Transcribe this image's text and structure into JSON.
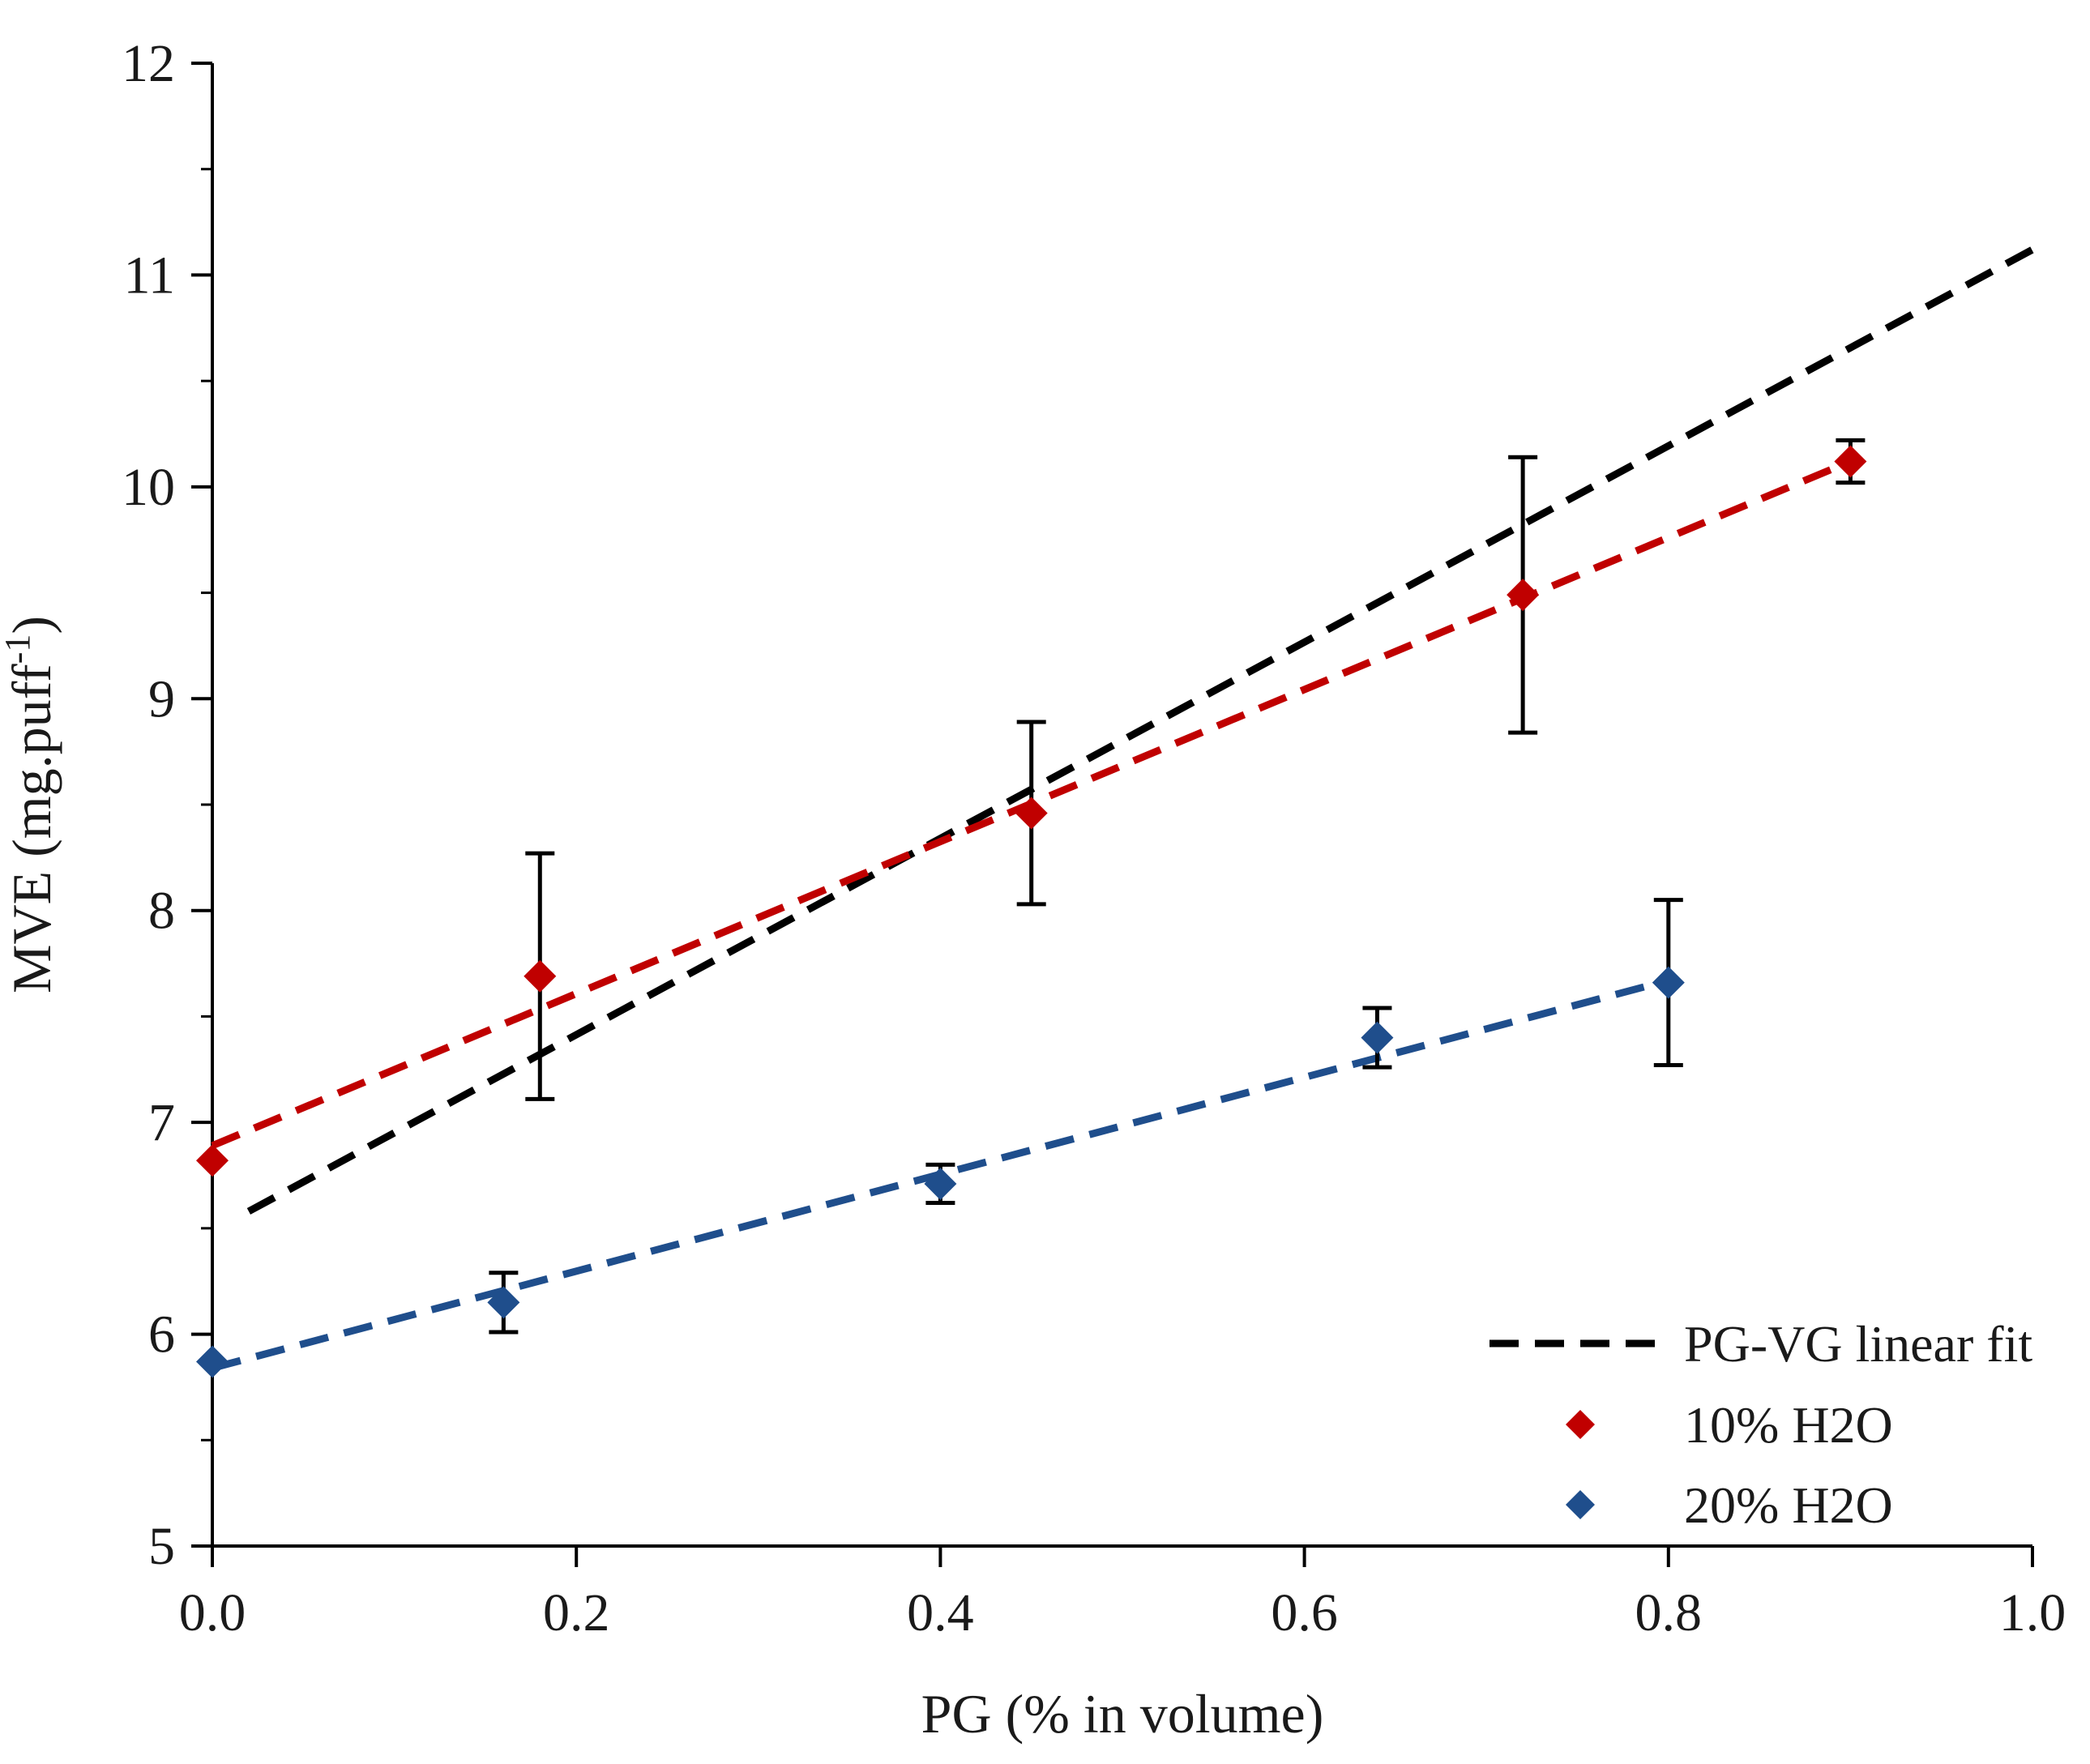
{
  "chart_data": {
    "type": "scatter",
    "title": "",
    "xlabel": "PG (% in volume)",
    "ylabel_main": "MVE (mg.puff",
    "ylabel_sup": "-1",
    "ylabel_close": ")",
    "xlim": [
      0,
      1
    ],
    "ylim": [
      5,
      12
    ],
    "grid": false,
    "legend_position": "bottom-right",
    "x_ticks": [
      0,
      0.2,
      0.4,
      0.6,
      0.8,
      1.0
    ],
    "x_tick_labels": [
      "0.0",
      "0.2",
      "0.4",
      "0.6",
      "0.8",
      "1.0"
    ],
    "y_ticks": [
      5,
      6,
      7,
      8,
      9,
      10,
      11,
      12
    ],
    "y_tick_labels": [
      "5",
      "6",
      "7",
      "8",
      "9",
      "10",
      "11",
      "12"
    ],
    "y_minor_step": 0.5,
    "series": [
      {
        "name": "10% H2O",
        "color": "#c00000",
        "marker": "diamond",
        "points": [
          {
            "x": 0.0,
            "y": 6.82,
            "err": 0.0
          },
          {
            "x": 0.18,
            "y": 7.69,
            "err": 0.58
          },
          {
            "x": 0.45,
            "y": 8.46,
            "err": 0.43
          },
          {
            "x": 0.72,
            "y": 9.49,
            "err": 0.65
          },
          {
            "x": 0.9,
            "y": 10.12,
            "err": 0.1
          }
        ],
        "fit": {
          "x": [
            0.0,
            0.9
          ],
          "y": [
            6.89,
            10.12
          ]
        }
      },
      {
        "name": "20% H2O",
        "color": "#1f4e8c",
        "marker": "diamond",
        "points": [
          {
            "x": 0.0,
            "y": 5.87,
            "err": 0.0
          },
          {
            "x": 0.16,
            "y": 6.15,
            "err": 0.14
          },
          {
            "x": 0.4,
            "y": 6.71,
            "err": 0.09
          },
          {
            "x": 0.64,
            "y": 7.4,
            "err": 0.14
          },
          {
            "x": 0.8,
            "y": 7.66,
            "err": 0.39
          }
        ],
        "fit": {
          "x": [
            0.0,
            0.8
          ],
          "y": [
            5.84,
            7.67
          ]
        }
      }
    ],
    "linear_fit": {
      "name": "PG-VG linear fit",
      "color": "#000000",
      "x": [
        0.02,
        1.0
      ],
      "y": [
        6.58,
        11.12
      ]
    }
  }
}
